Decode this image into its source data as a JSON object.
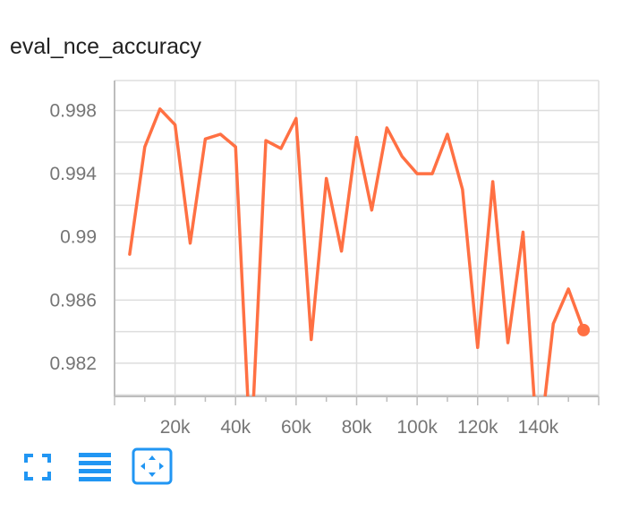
{
  "chart_data": {
    "type": "line",
    "title": "eval_nce_accuracy",
    "xlabel": "",
    "ylabel": "",
    "xlim": [
      0,
      160000
    ],
    "ylim": [
      0.9799,
      0.9999
    ],
    "x_ticks": [
      20000,
      40000,
      60000,
      80000,
      100000,
      120000,
      140000
    ],
    "x_tick_labels": [
      "20k",
      "40k",
      "60k",
      "80k",
      "100k",
      "120k",
      "140k"
    ],
    "y_ticks": [
      0.982,
      0.986,
      0.99,
      0.994,
      0.998
    ],
    "y_tick_labels": [
      "0.982",
      "0.986",
      "0.99",
      "0.994",
      "0.998"
    ],
    "grid": true,
    "series": [
      {
        "color": "#ff7043",
        "x": [
          5000,
          10000,
          15000,
          20000,
          25000,
          30000,
          35000,
          40000,
          45000,
          50000,
          55000,
          60000,
          65000,
          70000,
          75000,
          80000,
          85000,
          90000,
          95000,
          100000,
          105000,
          110000,
          115000,
          120000,
          125000,
          130000,
          135000,
          140000,
          145000,
          150000,
          155000
        ],
        "y": [
          0.9889,
          0.9957,
          0.9981,
          0.9971,
          0.9896,
          0.9962,
          0.9965,
          0.9957,
          0.976,
          0.9961,
          0.9956,
          0.9975,
          0.9835,
          0.9937,
          0.9891,
          0.9963,
          0.9917,
          0.9969,
          0.9951,
          0.994,
          0.994,
          0.9965,
          0.993,
          0.983,
          0.9935,
          0.9833,
          0.9903,
          0.976,
          0.9845,
          0.9867,
          0.9841
        ]
      }
    ]
  },
  "toolbar": {
    "icons": [
      "fullscreen-icon",
      "list-icon",
      "fit-domain-icon"
    ],
    "accent": "#2196f3"
  }
}
